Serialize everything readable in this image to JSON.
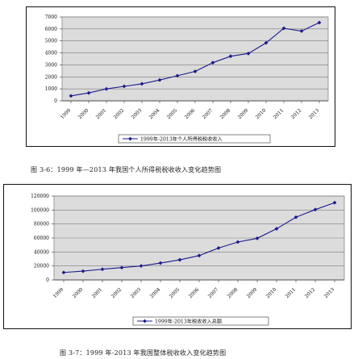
{
  "chart_data": [
    {
      "type": "line",
      "categories": [
        "1999",
        "2000",
        "2001",
        "2002",
        "2003",
        "2004",
        "2005",
        "2006",
        "2007",
        "2008",
        "2009",
        "2010",
        "2011",
        "2012",
        "2013"
      ],
      "series": [
        {
          "name": "1999年-2013年个人所得税税收收入",
          "values": [
            414,
            660,
            996,
            1212,
            1418,
            1737,
            2094,
            2454,
            3185,
            3722,
            3949,
            4837,
            6054,
            5820,
            6531
          ]
        }
      ],
      "ylim": [
        0,
        7000
      ],
      "yticks": [
        "0",
        "1000",
        "2000",
        "3000",
        "4000",
        "5000",
        "6000",
        "7000"
      ],
      "grid": true,
      "legend_position": "bottom",
      "color": "#1a1a8c",
      "caption": "图 3-6：1999 年—2013 年我国个人所得税税收收入变化趋势图"
    },
    {
      "type": "line",
      "categories": [
        "1999",
        "2000",
        "2001",
        "2002",
        "2003",
        "2004",
        "2005",
        "2006",
        "2007",
        "2008",
        "2009",
        "2010",
        "2011",
        "2012",
        "2013"
      ],
      "series": [
        {
          "name": "1999年-2013年税收收入总额",
          "values": [
            10682,
            12581,
            15301,
            17636,
            20017,
            24166,
            28779,
            34804,
            45622,
            54224,
            59522,
            73211,
            89738,
            100614,
            110531
          ]
        }
      ],
      "ylim": [
        0,
        120000
      ],
      "yticks": [
        "0",
        "20000",
        "40000",
        "60000",
        "80000",
        "100000",
        "120000"
      ],
      "grid": true,
      "legend_position": "bottom",
      "color": "#1a1a8c",
      "caption": "图 3-7：1999 年-2013 年我国整体税收收入变化趋势图"
    }
  ]
}
